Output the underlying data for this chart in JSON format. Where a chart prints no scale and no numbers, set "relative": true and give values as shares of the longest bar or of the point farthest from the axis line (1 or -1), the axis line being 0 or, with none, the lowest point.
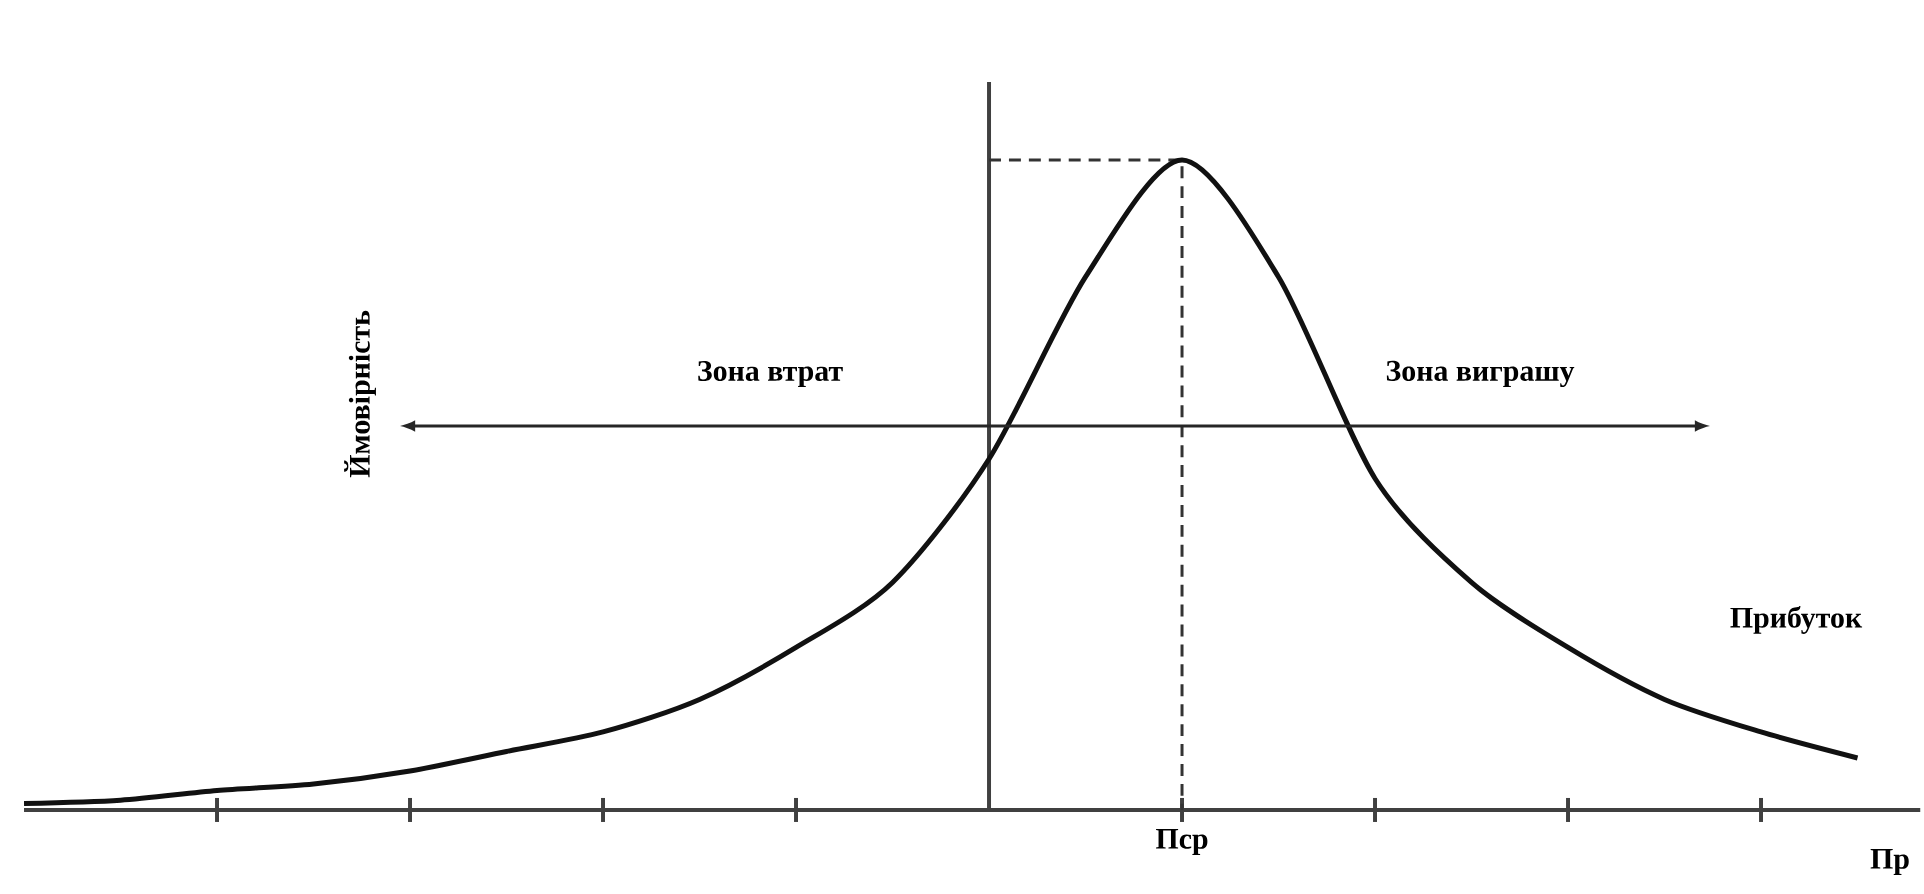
{
  "chart_data": {
    "type": "line",
    "relative": true,
    "xlabel": "Пр",
    "ylabel": "Ймовірність",
    "categories": [
      null,
      null,
      null,
      null,
      null,
      null,
      null,
      null,
      null,
      null,
      null,
      null,
      null,
      null,
      null,
      null,
      null,
      null,
      null,
      null
    ],
    "series": [
      {
        "color": "#111111",
        "values": [
          0.01,
          0.015,
          0.03,
          0.04,
          0.06,
          0.09,
          0.12,
          0.17,
          0.25,
          0.35,
          0.54,
          0.82,
          1,
          0.82,
          0.51,
          0.35,
          0.25,
          0.17,
          0.12,
          0.08
        ]
      }
    ],
    "annotations": [
      "Зона втрат",
      "Зона виграшу",
      "Прибуток",
      "Пср"
    ],
    "ref_lines": [
      {
        "axis": "y",
        "value": 1,
        "line_style": "dashed"
      }
    ],
    "line_style": "solid",
    "marker": "none"
  }
}
